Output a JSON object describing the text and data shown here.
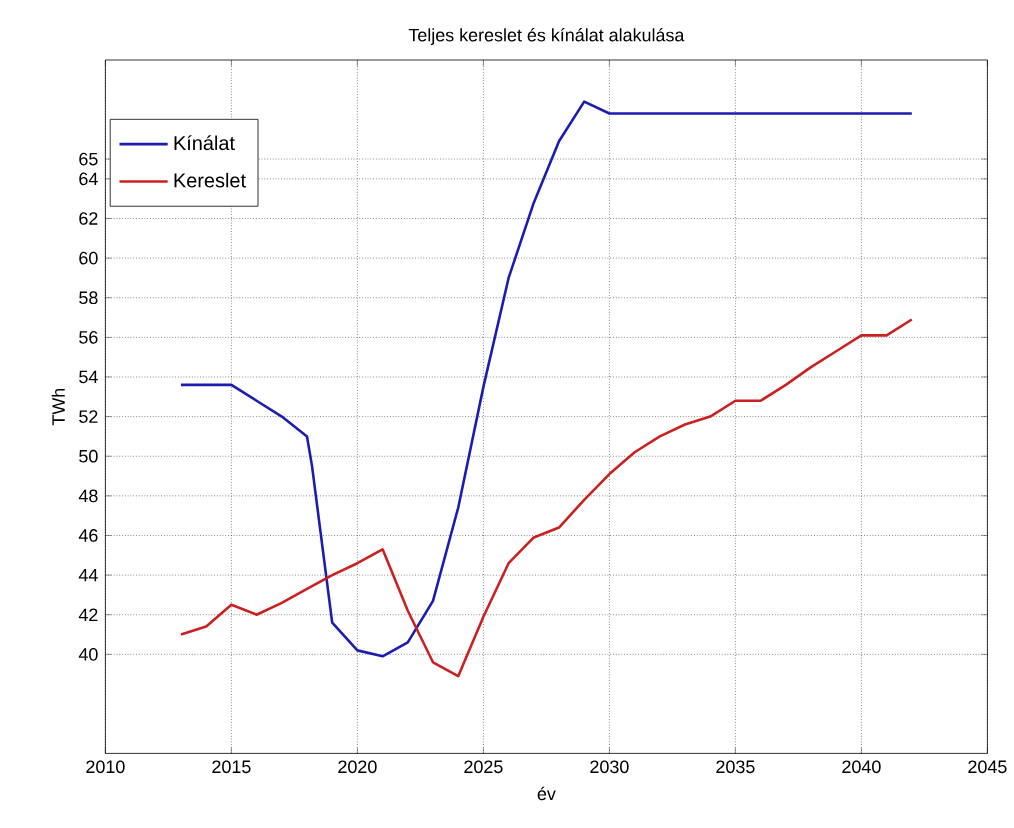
{
  "chart_data": {
    "type": "line",
    "title": "Teljes kereslet és kínálat alakulása",
    "xlabel": "év",
    "ylabel": "TWh",
    "x": [
      2013,
      2014,
      2015,
      2016,
      2017,
      2018,
      2019,
      2020,
      2021,
      2022,
      2023,
      2024,
      2025,
      2026,
      2027,
      2028,
      2029,
      2030,
      2031,
      2032,
      2033,
      2034,
      2035,
      2036,
      2037,
      2038,
      2039,
      2040,
      2041,
      2042
    ],
    "series": [
      {
        "name": "Kínálat",
        "color": "#1c1cb0",
        "x": [
          2013,
          2015,
          2016,
          2017,
          2018,
          2018.2,
          2019,
          2020,
          2021,
          2022,
          2023,
          2024,
          2025,
          2026,
          2027,
          2028,
          2029,
          2030,
          2042
        ],
        "values": [
          53.6,
          53.6,
          52.8,
          52.0,
          51.0,
          49.5,
          41.6,
          40.2,
          39.9,
          40.6,
          42.7,
          47.4,
          53.5,
          59.0,
          62.8,
          65.9,
          67.9,
          67.3,
          67.3
        ]
      },
      {
        "name": "Kereslet",
        "color": "#cc2020",
        "values": [
          41.0,
          41.4,
          42.5,
          42.0,
          42.6,
          43.3,
          44.0,
          44.6,
          45.3,
          42.2,
          39.6,
          38.9,
          41.9,
          44.6,
          45.9,
          46.4,
          47.8,
          49.1,
          50.2,
          51.0,
          51.6,
          52.0,
          52.8,
          52.8,
          53.6,
          54.5,
          55.3,
          56.1,
          56.1,
          56.9
        ]
      }
    ],
    "xlim": [
      2010,
      2045
    ],
    "xticks": [
      2010,
      2015,
      2020,
      2025,
      2030,
      2035,
      2040,
      2045
    ],
    "ylim": [
      35,
      70
    ],
    "yticks": [
      40,
      42,
      44,
      46,
      48,
      50,
      52,
      54,
      56,
      58,
      60,
      62,
      64,
      65
    ],
    "grid": true,
    "legend": "top left",
    "line_style": "solid",
    "marker": "none"
  }
}
